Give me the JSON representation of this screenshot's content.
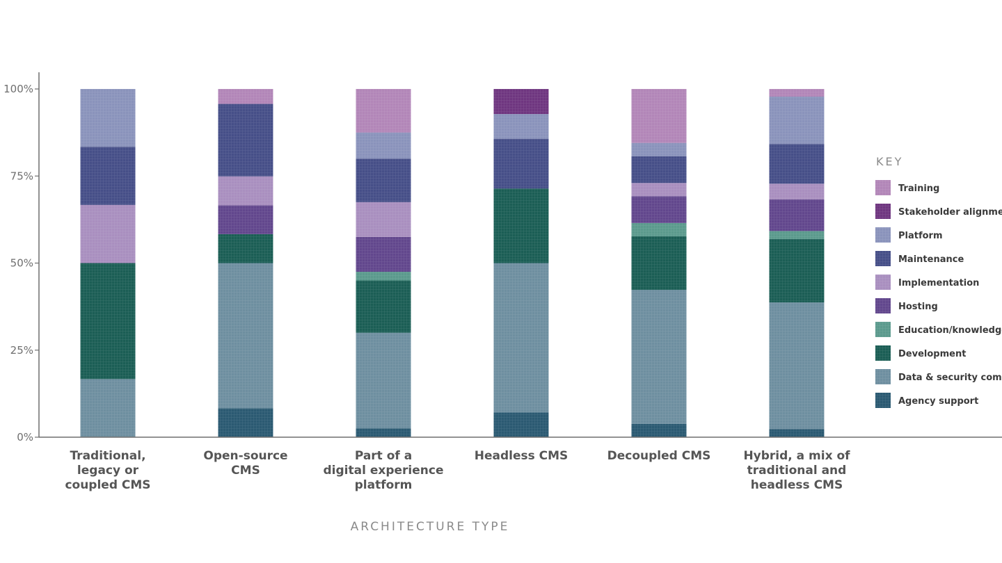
{
  "chart_data": {
    "type": "stacked-bar-100",
    "xlabel": "ARCHITECTURE TYPE",
    "ylabel": "",
    "ylim": [
      0,
      100
    ],
    "yticks": [
      "0%",
      "25%",
      "50%",
      "75%",
      "100%"
    ],
    "legend_title": "KEY",
    "legend_position": "right",
    "categories": [
      [
        "Traditional,",
        "legacy or",
        "coupled CMS"
      ],
      [
        "Open-source",
        "CMS"
      ],
      [
        "Part of a",
        "digital experience",
        "platform"
      ],
      [
        "Headless CMS"
      ],
      [
        "Decoupled CMS"
      ],
      [
        "Hybrid, a mix of",
        "traditional and",
        "headless CMS"
      ]
    ],
    "series": [
      {
        "name": "Agency support",
        "color": "#2b5a72",
        "values": [
          0,
          8.3,
          2.5,
          7.1,
          3.8,
          2.3
        ]
      },
      {
        "name": "Data & security compliance",
        "color": "#6e8fa0",
        "values": [
          16.7,
          41.7,
          27.5,
          42.9,
          38.5,
          36.4
        ]
      },
      {
        "name": "Development",
        "color": "#1b5e55",
        "values": [
          33.3,
          8.3,
          15,
          21.4,
          15.4,
          18.2
        ]
      },
      {
        "name": "Education/knowledge sharing",
        "color": "#5b9a8d",
        "values": [
          0,
          0,
          2.5,
          0,
          3.8,
          2.3
        ]
      },
      {
        "name": "Hosting",
        "color": "#62478d",
        "values": [
          0,
          8.3,
          10,
          0,
          7.7,
          9.1
        ]
      },
      {
        "name": "Implementation",
        "color": "#a98fbf",
        "values": [
          16.7,
          8.3,
          10,
          0,
          3.8,
          4.5
        ]
      },
      {
        "name": "Maintenance",
        "color": "#464f88",
        "values": [
          16.7,
          20.8,
          12.5,
          14.3,
          7.7,
          11.4
        ]
      },
      {
        "name": "Platform",
        "color": "#8a93bb",
        "values": [
          16.6,
          0,
          7.5,
          7.1,
          3.8,
          13.6
        ]
      },
      {
        "name": "Stakeholder alignment",
        "color": "#6f3680",
        "values": [
          0,
          0,
          0,
          7.2,
          0,
          0
        ]
      },
      {
        "name": "Training",
        "color": "#b286b8",
        "values": [
          0,
          4.3,
          12.5,
          0,
          15.5,
          2.2
        ]
      }
    ]
  }
}
